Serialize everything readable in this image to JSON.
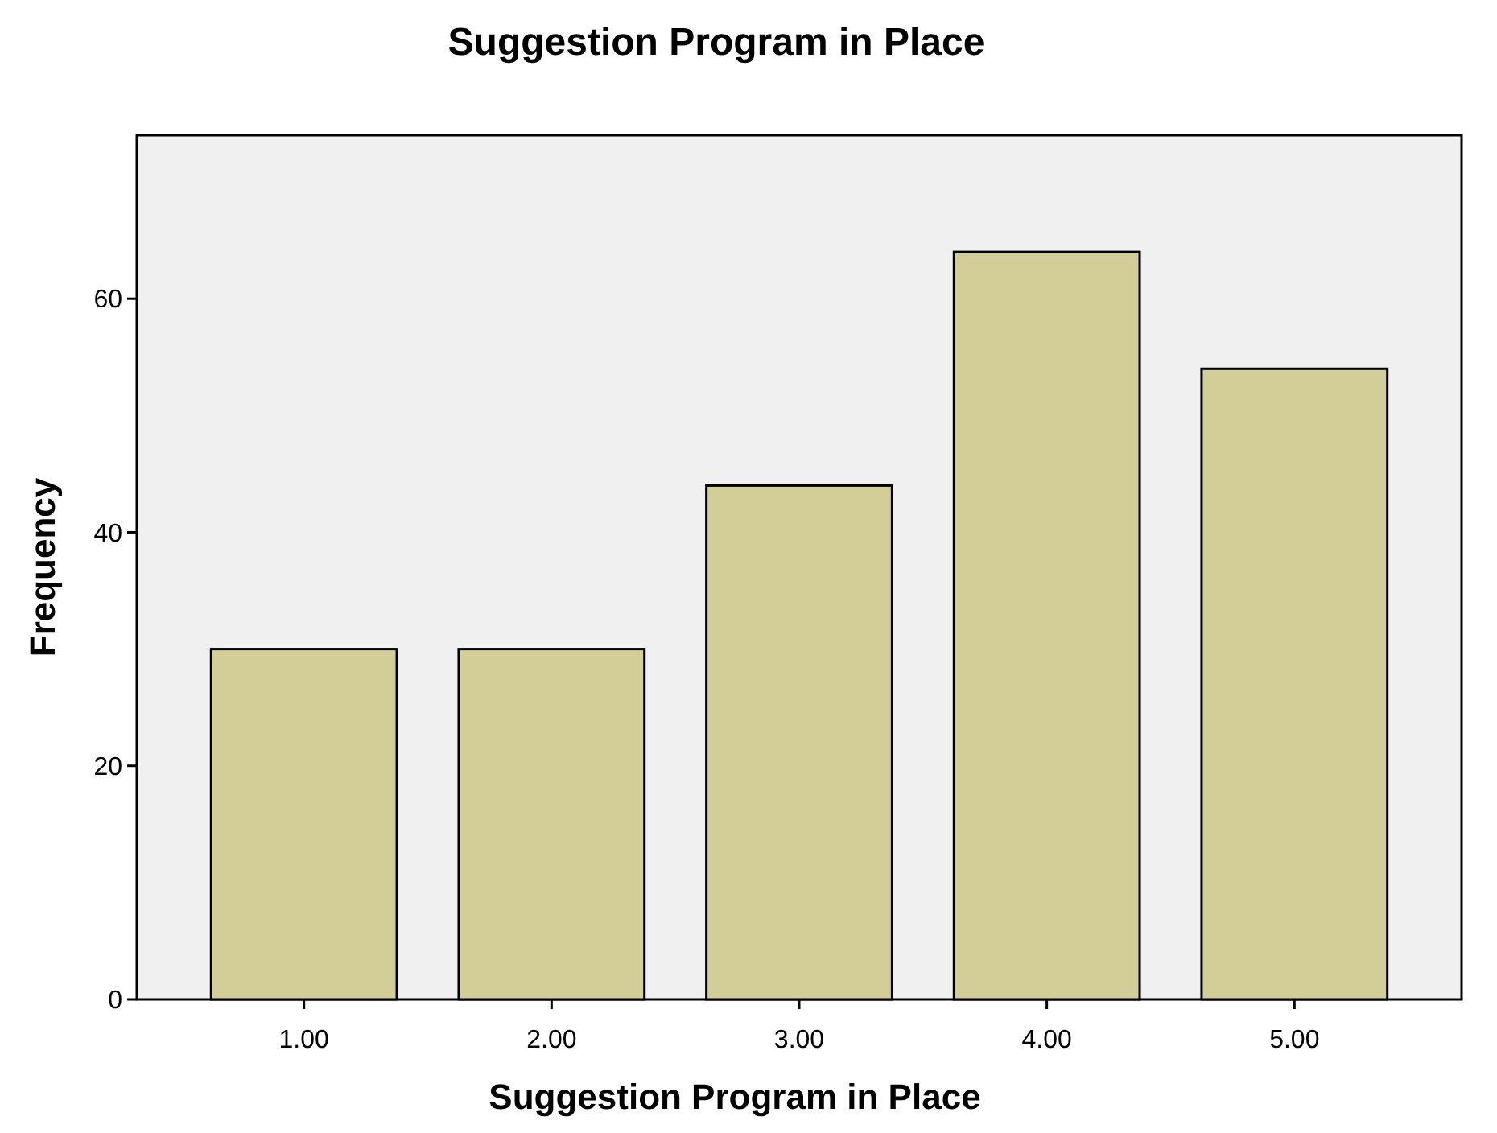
{
  "chart_data": {
    "type": "bar",
    "title": "Suggestion Program in Place",
    "xlabel": "Suggestion Program in Place",
    "ylabel": "Frequency",
    "categories": [
      "1.00",
      "2.00",
      "3.00",
      "4.00",
      "5.00"
    ],
    "values": [
      30,
      30,
      44,
      64,
      54
    ],
    "color": "#d3ce98",
    "ylim": [
      0,
      74
    ],
    "yticks": [
      0,
      20,
      40,
      60
    ],
    "grid": false
  }
}
